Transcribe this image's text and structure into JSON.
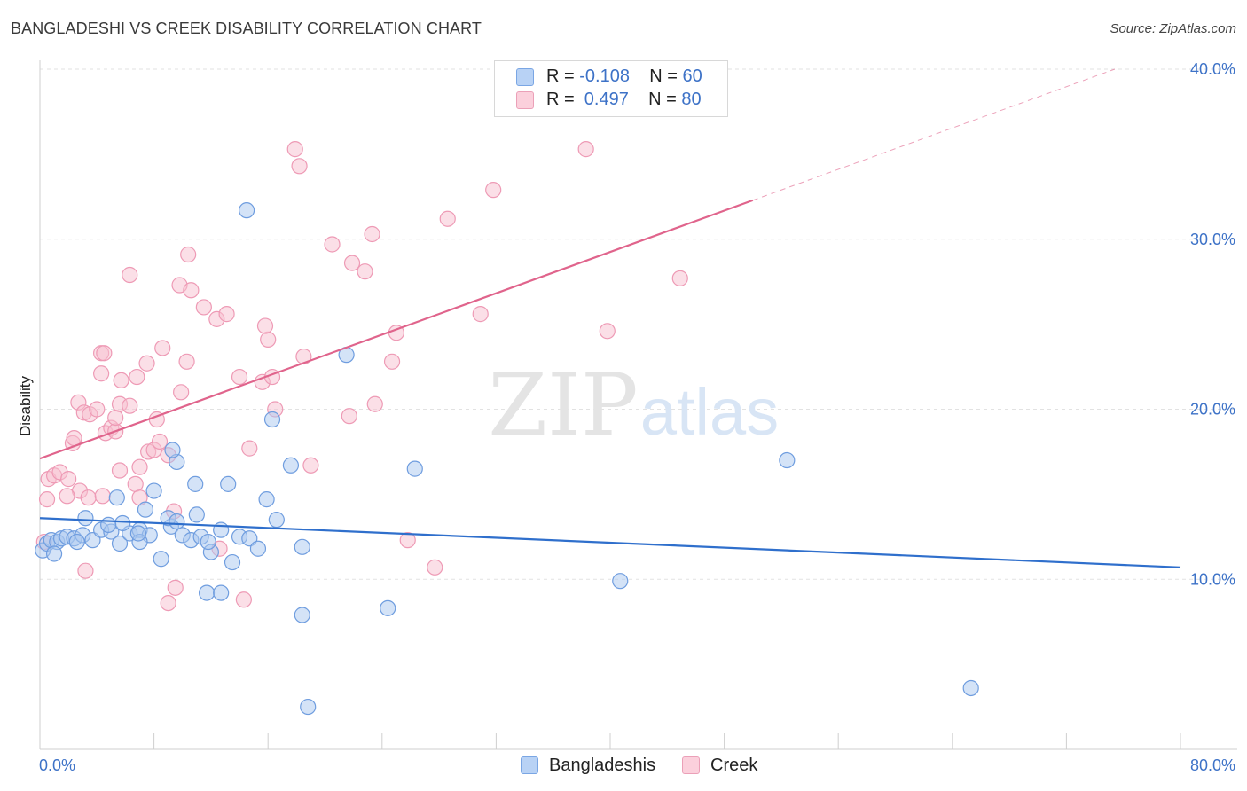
{
  "title": "BANGLADESHI VS CREEK DISABILITY CORRELATION CHART",
  "source": "Source: ZipAtlas.com",
  "watermark": {
    "zip": "ZIP",
    "atlas": "atlas"
  },
  "legend": {
    "rows": [
      {
        "r_label": "R = ",
        "r_value": "-0.108",
        "n_label": "N = ",
        "n_value": "60"
      },
      {
        "r_label": "R = ",
        "r_value": " 0.497",
        "n_label": "N = ",
        "n_value": "80"
      }
    ]
  },
  "bottom_legend": [
    "Bangladeshis",
    "Creek"
  ],
  "colors": {
    "blue_fill": "#a9c8f0",
    "blue_stroke": "#6f9ddf",
    "blue_line": "#2f6fcc",
    "pink_fill": "#f7bfd0",
    "pink_stroke": "#ee9ab5",
    "pink_line": "#e0648c",
    "grid": "#e2e2e2",
    "axis_label": "#3d72c7"
  },
  "chart_data": {
    "type": "scatter",
    "title": "BANGLADESHI VS CREEK DISABILITY CORRELATION CHART",
    "xlabel": "",
    "ylabel": "Disability",
    "xlim": [
      0,
      80
    ],
    "ylim": [
      0,
      40
    ],
    "x_tick_labels": [
      "0.0%",
      "80.0%"
    ],
    "y_ticks": [
      10,
      20,
      30,
      40
    ],
    "y_tick_labels": [
      "10.0%",
      "20.0%",
      "30.0%",
      "40.0%"
    ],
    "series": [
      {
        "name": "Bangladeshis",
        "r": -0.108,
        "n": 60,
        "trend": {
          "x": [
            0,
            80
          ],
          "y": [
            13.6,
            10.7
          ],
          "dashed_from": null
        },
        "points": [
          [
            0.2,
            11.7
          ],
          [
            0.5,
            12.1
          ],
          [
            0.8,
            12.3
          ],
          [
            1.2,
            12.2
          ],
          [
            1.5,
            12.4
          ],
          [
            1.9,
            12.5
          ],
          [
            2.4,
            12.4
          ],
          [
            3.0,
            12.6
          ],
          [
            3.7,
            12.3
          ],
          [
            4.3,
            12.9
          ],
          [
            5.0,
            12.8
          ],
          [
            5.6,
            12.1
          ],
          [
            6.3,
            12.7
          ],
          [
            7.0,
            12.9
          ],
          [
            7.7,
            12.6
          ],
          [
            8.5,
            11.2
          ],
          [
            9.2,
            13.1
          ],
          [
            10.0,
            12.6
          ],
          [
            10.6,
            12.3
          ],
          [
            11.3,
            12.5
          ],
          [
            12.0,
            11.6
          ],
          [
            12.7,
            12.9
          ],
          [
            13.5,
            11.0
          ],
          [
            14.0,
            12.5
          ],
          [
            14.7,
            12.4
          ],
          [
            15.3,
            11.8
          ],
          [
            3.2,
            13.6
          ],
          [
            5.8,
            13.3
          ],
          [
            7.4,
            14.1
          ],
          [
            9.0,
            13.6
          ],
          [
            9.6,
            13.4
          ],
          [
            11.0,
            13.8
          ],
          [
            13.2,
            15.6
          ],
          [
            15.9,
            14.7
          ],
          [
            16.6,
            13.5
          ],
          [
            2.6,
            12.2
          ],
          [
            1.0,
            11.5
          ],
          [
            4.8,
            13.2
          ],
          [
            7.0,
            12.2
          ],
          [
            11.8,
            12.2
          ],
          [
            8.0,
            15.2
          ],
          [
            5.4,
            14.8
          ],
          [
            10.9,
            15.6
          ],
          [
            18.4,
            11.9
          ],
          [
            9.6,
            16.9
          ],
          [
            17.6,
            16.7
          ],
          [
            16.3,
            19.4
          ],
          [
            21.5,
            23.2
          ],
          [
            26.3,
            16.5
          ],
          [
            14.5,
            31.7
          ],
          [
            52.4,
            17.0
          ],
          [
            40.7,
            9.9
          ],
          [
            11.7,
            9.2
          ],
          [
            12.7,
            9.2
          ],
          [
            18.4,
            7.9
          ],
          [
            24.4,
            8.3
          ],
          [
            18.8,
            2.5
          ],
          [
            65.3,
            3.6
          ],
          [
            9.3,
            17.6
          ],
          [
            6.9,
            12.7
          ]
        ]
      },
      {
        "name": "Creek",
        "r": 0.497,
        "n": 80,
        "trend": {
          "x": [
            0,
            80
          ],
          "y": [
            17.1,
            41.4
          ],
          "dashed_from": 50
        },
        "points": [
          [
            0.3,
            12.2
          ],
          [
            0.5,
            14.7
          ],
          [
            0.6,
            15.9
          ],
          [
            1.0,
            16.1
          ],
          [
            1.4,
            16.3
          ],
          [
            2.0,
            15.9
          ],
          [
            2.8,
            15.2
          ],
          [
            3.4,
            14.8
          ],
          [
            4.4,
            14.9
          ],
          [
            1.9,
            14.9
          ],
          [
            2.3,
            18.0
          ],
          [
            2.4,
            18.3
          ],
          [
            2.7,
            20.4
          ],
          [
            3.1,
            19.8
          ],
          [
            3.5,
            19.7
          ],
          [
            4.0,
            20.0
          ],
          [
            4.6,
            18.6
          ],
          [
            5.0,
            18.9
          ],
          [
            5.3,
            18.7
          ],
          [
            5.3,
            19.5
          ],
          [
            5.6,
            16.4
          ],
          [
            5.6,
            20.3
          ],
          [
            6.3,
            20.2
          ],
          [
            6.7,
            15.6
          ],
          [
            7.0,
            16.6
          ],
          [
            7.0,
            14.8
          ],
          [
            7.6,
            17.5
          ],
          [
            8.0,
            17.6
          ],
          [
            8.2,
            19.4
          ],
          [
            8.4,
            18.1
          ],
          [
            8.6,
            23.6
          ],
          [
            9.0,
            17.3
          ],
          [
            9.4,
            14.0
          ],
          [
            9.9,
            21.0
          ],
          [
            10.3,
            22.8
          ],
          [
            4.3,
            22.1
          ],
          [
            4.3,
            23.3
          ],
          [
            4.5,
            23.3
          ],
          [
            5.7,
            21.7
          ],
          [
            6.8,
            21.9
          ],
          [
            7.5,
            22.7
          ],
          [
            10.4,
            29.1
          ],
          [
            9.8,
            27.3
          ],
          [
            10.6,
            27.0
          ],
          [
            11.5,
            26.0
          ],
          [
            12.4,
            25.3
          ],
          [
            13.1,
            25.6
          ],
          [
            14.0,
            21.9
          ],
          [
            14.7,
            17.7
          ],
          [
            15.6,
            21.6
          ],
          [
            16.0,
            24.1
          ],
          [
            15.8,
            24.9
          ],
          [
            16.3,
            21.9
          ],
          [
            16.5,
            20.0
          ],
          [
            18.5,
            23.1
          ],
          [
            19.0,
            16.7
          ],
          [
            17.9,
            35.3
          ],
          [
            18.2,
            34.3
          ],
          [
            20.5,
            29.7
          ],
          [
            21.7,
            19.6
          ],
          [
            21.9,
            28.6
          ],
          [
            22.8,
            28.1
          ],
          [
            23.3,
            30.3
          ],
          [
            23.5,
            20.3
          ],
          [
            24.7,
            22.8
          ],
          [
            25.0,
            24.5
          ],
          [
            25.8,
            12.3
          ],
          [
            27.7,
            10.7
          ],
          [
            28.6,
            31.2
          ],
          [
            30.9,
            25.6
          ],
          [
            31.8,
            32.9
          ],
          [
            38.3,
            35.3
          ],
          [
            39.8,
            24.6
          ],
          [
            44.9,
            27.7
          ],
          [
            9.5,
            9.5
          ],
          [
            9.0,
            8.6
          ],
          [
            14.3,
            8.8
          ],
          [
            12.6,
            11.8
          ],
          [
            3.2,
            10.5
          ],
          [
            6.3,
            27.9
          ]
        ]
      }
    ]
  }
}
